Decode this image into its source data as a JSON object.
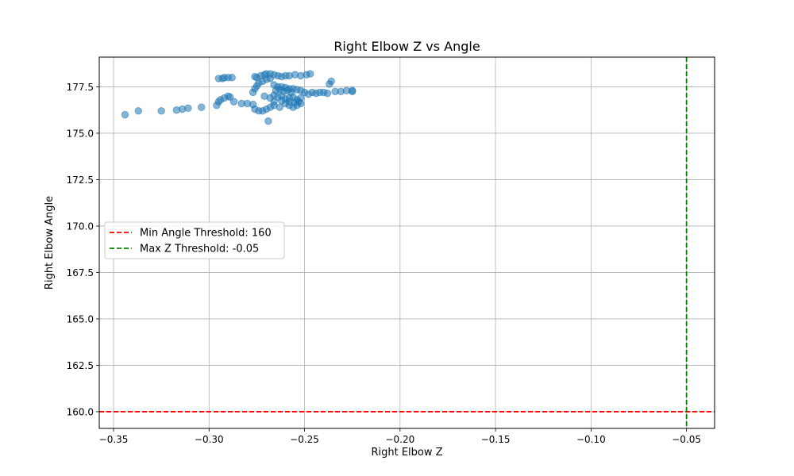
{
  "chart_data": {
    "type": "scatter",
    "title": "Right Elbow Z vs Angle",
    "xlabel": "Right Elbow Z",
    "ylabel": "Right Elbow Angle",
    "xlim": [
      -0.3575,
      -0.0353
    ],
    "ylim": [
      159.1,
      179.1
    ],
    "xticks": [
      -0.35,
      -0.3,
      -0.25,
      -0.2,
      -0.15,
      -0.1,
      -0.05
    ],
    "xtick_labels": [
      "−0.35",
      "−0.30",
      "−0.25",
      "−0.20",
      "−0.15",
      "−0.10",
      "−0.05"
    ],
    "yticks": [
      160.0,
      162.5,
      165.0,
      167.5,
      170.0,
      172.5,
      175.0,
      177.5
    ],
    "ytick_labels": [
      "160.0",
      "162.5",
      "165.0",
      "167.5",
      "170.0",
      "172.5",
      "175.0",
      "177.5"
    ],
    "grid": true,
    "legend_position": "center-left",
    "point_color": "#1f77b4",
    "points": [
      [
        -0.344,
        176.0
      ],
      [
        -0.337,
        176.2
      ],
      [
        -0.325,
        176.2
      ],
      [
        -0.317,
        176.25
      ],
      [
        -0.314,
        176.3
      ],
      [
        -0.311,
        176.35
      ],
      [
        -0.304,
        176.4
      ],
      [
        -0.296,
        176.5
      ],
      [
        -0.295,
        176.7
      ],
      [
        -0.294,
        176.8
      ],
      [
        -0.292,
        176.9
      ],
      [
        -0.29,
        177.0
      ],
      [
        -0.289,
        176.95
      ],
      [
        -0.287,
        176.7
      ],
      [
        -0.283,
        176.6
      ],
      [
        -0.28,
        176.6
      ],
      [
        -0.277,
        176.55
      ],
      [
        -0.276,
        176.3
      ],
      [
        -0.274,
        176.2
      ],
      [
        -0.272,
        176.2
      ],
      [
        -0.27,
        176.3
      ],
      [
        -0.269,
        175.65
      ],
      [
        -0.268,
        176.4
      ],
      [
        -0.266,
        176.5
      ],
      [
        -0.263,
        176.4
      ],
      [
        -0.26,
        176.6
      ],
      [
        -0.258,
        176.5
      ],
      [
        -0.256,
        176.4
      ],
      [
        -0.254,
        176.5
      ],
      [
        -0.252,
        176.6
      ],
      [
        -0.295,
        177.95
      ],
      [
        -0.293,
        177.95
      ],
      [
        -0.292,
        178.0
      ],
      [
        -0.29,
        178.0
      ],
      [
        -0.288,
        178.0
      ],
      [
        -0.276,
        178.05
      ],
      [
        -0.275,
        178.0
      ],
      [
        -0.273,
        178.1
      ],
      [
        -0.271,
        178.15
      ],
      [
        -0.27,
        178.2
      ],
      [
        -0.268,
        178.2
      ],
      [
        -0.266,
        178.15
      ],
      [
        -0.264,
        178.1
      ],
      [
        -0.262,
        178.05
      ],
      [
        -0.26,
        178.1
      ],
      [
        -0.258,
        178.1
      ],
      [
        -0.255,
        178.15
      ],
      [
        -0.252,
        178.1
      ],
      [
        -0.249,
        178.15
      ],
      [
        -0.247,
        178.2
      ],
      [
        -0.277,
        177.2
      ],
      [
        -0.276,
        177.4
      ],
      [
        -0.275,
        177.55
      ],
      [
        -0.274,
        177.7
      ],
      [
        -0.272,
        177.8
      ],
      [
        -0.27,
        177.9
      ],
      [
        -0.268,
        177.95
      ],
      [
        -0.266,
        177.6
      ],
      [
        -0.264,
        177.5
      ],
      [
        -0.262,
        177.5
      ],
      [
        -0.26,
        177.45
      ],
      [
        -0.258,
        177.4
      ],
      [
        -0.256,
        177.4
      ],
      [
        -0.254,
        177.35
      ],
      [
        -0.252,
        177.3
      ],
      [
        -0.25,
        177.2
      ],
      [
        -0.248,
        177.1
      ],
      [
        -0.246,
        177.2
      ],
      [
        -0.244,
        177.15
      ],
      [
        -0.242,
        177.2
      ],
      [
        -0.24,
        177.2
      ],
      [
        -0.238,
        177.15
      ],
      [
        -0.237,
        177.65
      ],
      [
        -0.236,
        177.8
      ],
      [
        -0.234,
        177.25
      ],
      [
        -0.231,
        177.25
      ],
      [
        -0.228,
        177.3
      ],
      [
        -0.225,
        177.25
      ],
      [
        -0.225,
        177.3
      ],
      [
        -0.271,
        177.0
      ],
      [
        -0.268,
        176.9
      ],
      [
        -0.266,
        177.05
      ],
      [
        -0.264,
        176.95
      ],
      [
        -0.262,
        177.0
      ],
      [
        -0.26,
        176.85
      ],
      [
        -0.258,
        176.9
      ],
      [
        -0.256,
        176.95
      ],
      [
        -0.254,
        176.8
      ],
      [
        -0.252,
        176.9
      ],
      [
        -0.265,
        177.3
      ],
      [
        -0.263,
        177.35
      ],
      [
        -0.261,
        177.25
      ],
      [
        -0.259,
        177.3
      ],
      [
        -0.257,
        177.2
      ],
      [
        -0.266,
        176.7
      ],
      [
        -0.262,
        176.75
      ],
      [
        -0.258,
        176.7
      ],
      [
        -0.255,
        176.65
      ],
      [
        -0.253,
        176.7
      ]
    ],
    "hlines": [
      {
        "name": "Min Angle Threshold: 160",
        "y": 160,
        "color": "#ff0000"
      }
    ],
    "vlines": [
      {
        "name": "Max Z Threshold: -0.05",
        "x": -0.05,
        "color": "#008000"
      }
    ]
  }
}
